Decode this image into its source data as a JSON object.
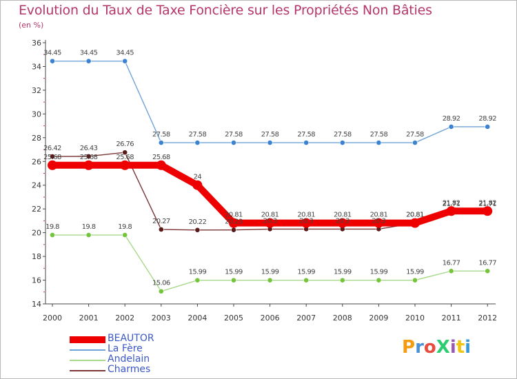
{
  "chart_data": {
    "type": "line",
    "title": "Evolution du Taux de Taxe Foncière sur les Propriétés Non Bâties",
    "ylabel": "(en %)",
    "xlabel": "",
    "ylim": [
      14,
      36
    ],
    "yticks": [
      14,
      16,
      18,
      20,
      22,
      24,
      26,
      28,
      30,
      32,
      34,
      36
    ],
    "categories": [
      "2000",
      "2001",
      "2002",
      "2003",
      "2004",
      "2005",
      "2006",
      "2007",
      "2008",
      "2009",
      "2010",
      "2011",
      "2012"
    ],
    "series": [
      {
        "name": "La Fère",
        "color": "#6fa3d8",
        "marker": "#3b82d1",
        "values": [
          34.45,
          34.45,
          34.45,
          27.58,
          27.58,
          27.58,
          27.58,
          27.58,
          27.58,
          27.58,
          27.58,
          28.92,
          28.92
        ],
        "labels": [
          "34.45",
          "34.45",
          "34.45",
          "27.58",
          "27.58",
          "27.58",
          "27.58",
          "27.58",
          "27.58",
          "27.58",
          "27.58",
          "28.92",
          "28.92"
        ]
      },
      {
        "name": "Andelain",
        "color": "#a6d98a",
        "marker": "#74c43c",
        "values": [
          19.8,
          19.8,
          19.8,
          15.06,
          15.99,
          15.99,
          15.99,
          15.99,
          15.99,
          15.99,
          15.99,
          16.77,
          16.77
        ],
        "labels": [
          "19.8",
          "19.8",
          "19.8",
          "15.06",
          "15.99",
          "15.99",
          "15.99",
          "15.99",
          "15.99",
          "15.99",
          "15.99",
          "16.77",
          "16.77"
        ]
      },
      {
        "name": "Charmes",
        "color": "#7a3535",
        "marker": "#5a1a1a",
        "values": [
          26.42,
          26.43,
          26.76,
          20.27,
          20.22,
          20.23,
          20.3,
          20.3,
          20.3,
          20.3,
          20.81,
          21.71,
          21.71
        ],
        "labels": [
          "26.42",
          "26.43",
          "26.76",
          "20.27",
          "20.22",
          "20.23",
          "20.3",
          "20.3",
          "20.3",
          "20.3",
          "20.81",
          "21.71",
          "21.71"
        ]
      },
      {
        "name": "BEAUTOR",
        "color": "#ee0000",
        "marker": "#ee0000",
        "values": [
          25.68,
          25.68,
          25.68,
          25.68,
          24,
          20.81,
          20.81,
          20.81,
          20.81,
          20.81,
          20.81,
          21.82,
          21.82
        ],
        "labels": [
          "25.68",
          "25.68",
          "25.68",
          "25.68",
          "24",
          "20.81",
          "20.81",
          "20.81",
          "20.81",
          "20.81",
          "20.81",
          "21.82",
          "21.82"
        ]
      }
    ],
    "legend": [
      "BEAUTOR",
      "La Fère",
      "Andelain",
      "Charmes"
    ],
    "grid": false
  },
  "logo": {
    "text": "ProXiti",
    "colors": [
      "#f39c12",
      "#4a90d9",
      "#e74c3c",
      "#2ecc71",
      "#9b59b6",
      "#f1c40f",
      "#3498db"
    ]
  }
}
